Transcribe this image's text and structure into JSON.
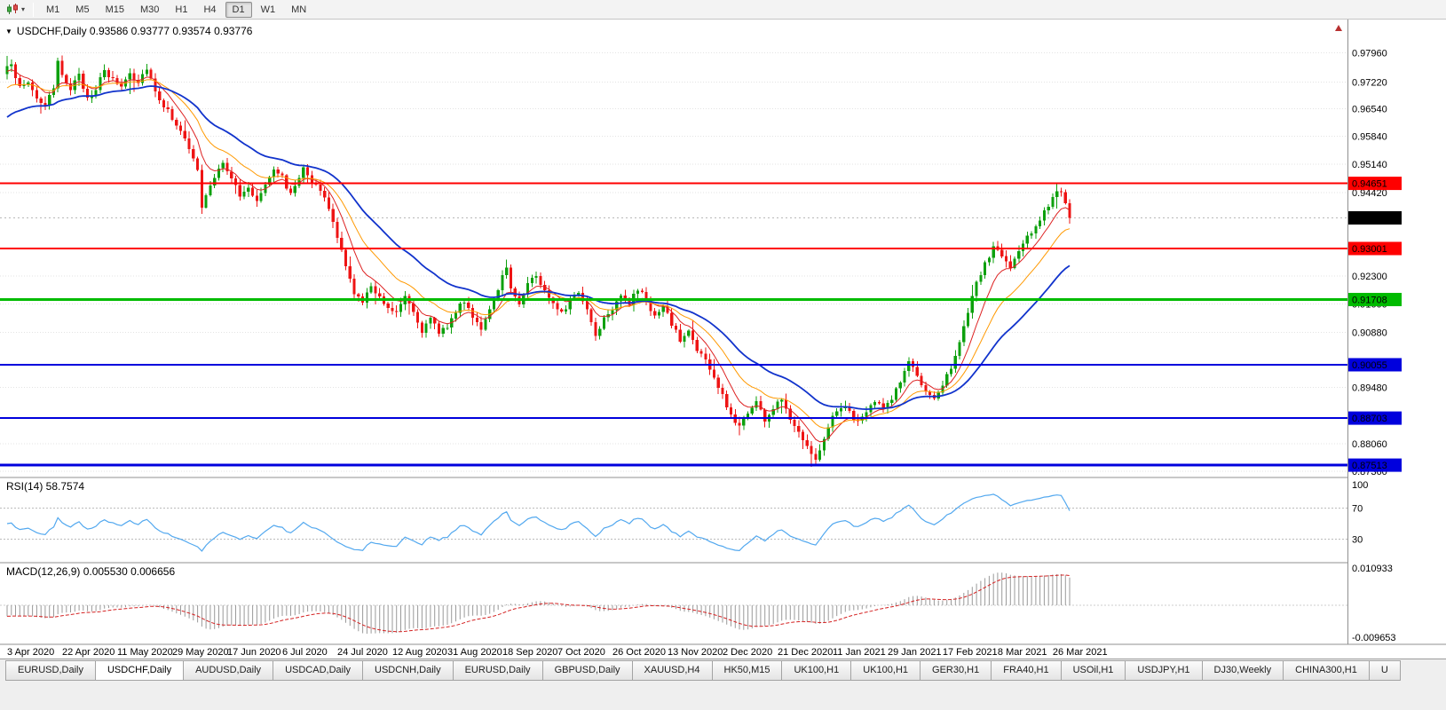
{
  "toolbar": {
    "chart_type_tooltip": "Candlesticks",
    "timeframes": [
      "M1",
      "M5",
      "M15",
      "M30",
      "H1",
      "H4",
      "D1",
      "W1",
      "MN"
    ],
    "active_timeframe": "D1"
  },
  "chart": {
    "symbol": "USDCHF",
    "period": "Daily",
    "header_line": "USDCHF,Daily 0.93586 0.93777 0.93574 0.93776",
    "ohlc": {
      "open": "0.93586",
      "high": "0.93777",
      "low": "0.93574",
      "close": "0.93776"
    }
  },
  "indicator_labels": {
    "rsi": "RSI(14) 58.7574",
    "macd": "MACD(12,26,9) 0.005530 0.006656"
  },
  "tabs": {
    "items": [
      "EURUSD,Daily",
      "USDCHF,Daily",
      "AUDUSD,Daily",
      "USDCAD,Daily",
      "USDCNH,Daily",
      "EURUSD,Daily",
      "GBPUSD,Daily",
      "XAUUSD,H4",
      "HK50,M15",
      "UK100,H1",
      "UK100,H1",
      "GER30,H1",
      "FRA40,H1",
      "USOil,H1",
      "USDJPY,H1",
      "DJ30,Weekly",
      "CHINA300,H1",
      "U"
    ],
    "active_index": 1
  },
  "chart_data": {
    "type": "candlestick",
    "symbol": "USDCHF",
    "timeframe": "Daily",
    "bar_count": 252,
    "bars_per_label": 13,
    "x_labels": [
      "3 Apr 2020",
      "22 Apr 2020",
      "11 May 2020",
      "29 May 2020",
      "17 Jun 2020",
      "6 Jul 2020",
      "24 Jul 2020",
      "12 Aug 2020",
      "31 Aug 2020",
      "18 Sep 2020",
      "7 Oct 2020",
      "26 Oct 2020",
      "13 Nov 2020",
      "2 Dec 2020",
      "21 Dec 2020",
      "11 Jan 2021",
      "29 Jan 2021",
      "17 Feb 2021",
      "8 Mar 2021",
      "26 Mar 2021"
    ],
    "ylim": [
      0.8724,
      0.9862
    ],
    "price_ticks": [
      "0.97960",
      "0.97220",
      "0.96540",
      "0.95840",
      "0.95140",
      "0.94420",
      "0.92300",
      "0.91600",
      "0.90880",
      "0.89480",
      "0.88060",
      "0.87360"
    ],
    "candle_up_color": "#0da00d",
    "candle_down_color": "#ee1414",
    "last_close": 0.93776,
    "close_waypoints": [
      [
        0,
        0.9755
      ],
      [
        1,
        0.9772
      ],
      [
        3,
        0.9705
      ],
      [
        5,
        0.9722
      ],
      [
        7,
        0.9682
      ],
      [
        9,
        0.9662
      ],
      [
        11,
        0.9702
      ],
      [
        12,
        0.9768
      ],
      [
        13,
        0.9742
      ],
      [
        15,
        0.9706
      ],
      [
        17,
        0.9736
      ],
      [
        19,
        0.9682
      ],
      [
        21,
        0.9706
      ],
      [
        23,
        0.9748
      ],
      [
        25,
        0.9726
      ],
      [
        27,
        0.9712
      ],
      [
        29,
        0.9746
      ],
      [
        31,
        0.9722
      ],
      [
        33,
        0.976
      ],
      [
        35,
        0.97
      ],
      [
        37,
        0.9662
      ],
      [
        39,
        0.9632
      ],
      [
        41,
        0.9602
      ],
      [
        43,
        0.9548
      ],
      [
        45,
        0.9502
      ],
      [
        46,
        0.9402
      ],
      [
        47,
        0.9436
      ],
      [
        49,
        0.9476
      ],
      [
        51,
        0.9521
      ],
      [
        53,
        0.9481
      ],
      [
        55,
        0.9432
      ],
      [
        57,
        0.9452
      ],
      [
        59,
        0.9422
      ],
      [
        61,
        0.9466
      ],
      [
        63,
        0.9506
      ],
      [
        65,
        0.9481
      ],
      [
        67,
        0.9436
      ],
      [
        69,
        0.9481
      ],
      [
        70,
        0.9512
      ],
      [
        72,
        0.9471
      ],
      [
        74,
        0.9446
      ],
      [
        76,
        0.9401
      ],
      [
        78,
        0.9331
      ],
      [
        80,
        0.9251
      ],
      [
        82,
        0.9191
      ],
      [
        84,
        0.9161
      ],
      [
        86,
        0.9206
      ],
      [
        88,
        0.9181
      ],
      [
        90,
        0.9149
      ],
      [
        92,
        0.9141
      ],
      [
        94,
        0.9186
      ],
      [
        96,
        0.9141
      ],
      [
        98,
        0.9093
      ],
      [
        100,
        0.9119
      ],
      [
        102,
        0.9089
      ],
      [
        104,
        0.9106
      ],
      [
        106,
        0.9141
      ],
      [
        108,
        0.9166
      ],
      [
        110,
        0.9131
      ],
      [
        112,
        0.9099
      ],
      [
        114,
        0.9141
      ],
      [
        116,
        0.9191
      ],
      [
        117,
        0.9231
      ],
      [
        118,
        0.9259
      ],
      [
        119,
        0.9196
      ],
      [
        121,
        0.9161
      ],
      [
        123,
        0.9216
      ],
      [
        125,
        0.9231
      ],
      [
        127,
        0.9191
      ],
      [
        129,
        0.9166
      ],
      [
        131,
        0.9141
      ],
      [
        133,
        0.9166
      ],
      [
        135,
        0.9191
      ],
      [
        137,
        0.9146
      ],
      [
        139,
        0.9081
      ],
      [
        141,
        0.9126
      ],
      [
        143,
        0.9151
      ],
      [
        145,
        0.9186
      ],
      [
        147,
        0.9161
      ],
      [
        149,
        0.9196
      ],
      [
        151,
        0.9171
      ],
      [
        153,
        0.9126
      ],
      [
        155,
        0.9151
      ],
      [
        157,
        0.9111
      ],
      [
        159,
        0.9066
      ],
      [
        161,
        0.9091
      ],
      [
        163,
        0.9046
      ],
      [
        165,
        0.9016
      ],
      [
        167,
        0.8971
      ],
      [
        169,
        0.8926
      ],
      [
        171,
        0.8876
      ],
      [
        173,
        0.8851
      ],
      [
        175,
        0.8886
      ],
      [
        177,
        0.8913
      ],
      [
        179,
        0.8866
      ],
      [
        181,
        0.8893
      ],
      [
        183,
        0.8921
      ],
      [
        185,
        0.8873
      ],
      [
        187,
        0.8836
      ],
      [
        189,
        0.8806
      ],
      [
        191,
        0.8761
      ],
      [
        193,
        0.8823
      ],
      [
        195,
        0.8873
      ],
      [
        197,
        0.8901
      ],
      [
        199,
        0.8886
      ],
      [
        201,
        0.8859
      ],
      [
        203,
        0.8883
      ],
      [
        205,
        0.8913
      ],
      [
        207,
        0.8893
      ],
      [
        209,
        0.8923
      ],
      [
        211,
        0.8963
      ],
      [
        213,
        0.9013
      ],
      [
        215,
        0.8979
      ],
      [
        217,
        0.8933
      ],
      [
        219,
        0.8913
      ],
      [
        221,
        0.8959
      ],
      [
        223,
        0.9003
      ],
      [
        225,
        0.9063
      ],
      [
        227,
        0.9133
      ],
      [
        229,
        0.9213
      ],
      [
        231,
        0.9259
      ],
      [
        233,
        0.9303
      ],
      [
        235,
        0.9283
      ],
      [
        237,
        0.9249
      ],
      [
        239,
        0.9293
      ],
      [
        241,
        0.9326
      ],
      [
        243,
        0.9359
      ],
      [
        245,
        0.9393
      ],
      [
        247,
        0.9429
      ],
      [
        248,
        0.9451
      ],
      [
        249,
        0.9436
      ],
      [
        250,
        0.9411
      ],
      [
        251,
        0.93776
      ]
    ],
    "special_bars": {
      "46": {
        "low": 0.9388
      },
      "118": {
        "high": 0.9272
      },
      "191": {
        "low": 0.87513
      },
      "248": {
        "high": 0.9464
      }
    },
    "moving_averages": [
      {
        "name": "ma-fast-red",
        "period": 8,
        "seed": 0.9745,
        "color": "#dd2222",
        "width": 1
      },
      {
        "name": "ma-mid-orange",
        "period": 17,
        "seed": 0.97,
        "color": "#ff9900",
        "width": 1
      },
      {
        "name": "ma-slow-blue",
        "period": 34,
        "seed": 0.9625,
        "color": "#1133cc",
        "width": 1.8
      }
    ],
    "horizontal_lines": [
      {
        "price": 0.94651,
        "label": "0.94651",
        "color": "#ff0000",
        "width": 2
      },
      {
        "price": 0.93001,
        "label": "0.93001",
        "color": "#ff0000",
        "width": 2
      },
      {
        "price": 0.91708,
        "label": "0.91708",
        "color": "#00bb00",
        "width": 3
      },
      {
        "price": 0.90055,
        "label": "0.90055",
        "color": "#0000dd",
        "width": 2
      },
      {
        "price": 0.88703,
        "label": "0.88703",
        "color": "#0000dd",
        "width": 2
      },
      {
        "price": 0.87513,
        "label": "0.87513",
        "color": "#0000dd",
        "width": 3
      }
    ],
    "current_price": {
      "value": 0.93776,
      "label": "0.93776",
      "badge_color": "#000000"
    },
    "rsi": {
      "period": 14,
      "current": "58.7574",
      "levels": [
        100,
        70,
        30
      ],
      "color": "#52a8ef"
    },
    "macd": {
      "fast": 12,
      "slow": 26,
      "signal_period": 9,
      "values": [
        "0.005530",
        "0.006656"
      ],
      "axis_max": "0.010933",
      "axis_min": "-0.009653",
      "hist_color": "#9a9a9a",
      "signal_color": "#d42222"
    }
  }
}
